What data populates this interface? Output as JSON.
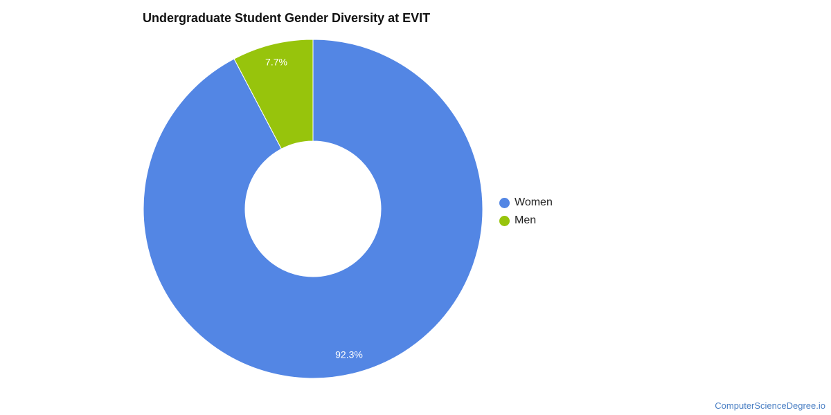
{
  "chart_data": {
    "type": "pie",
    "title": "Undergraduate Student Gender Diversity at EVIT",
    "donut": true,
    "categories": [
      "Women",
      "Men"
    ],
    "values": [
      92.3,
      7.7
    ],
    "labels": [
      "92.3%",
      "7.7%"
    ],
    "colors": [
      "#5386E4",
      "#97C40C"
    ],
    "legend_position": "right"
  },
  "watermark": "ComputerScienceDegree.io"
}
